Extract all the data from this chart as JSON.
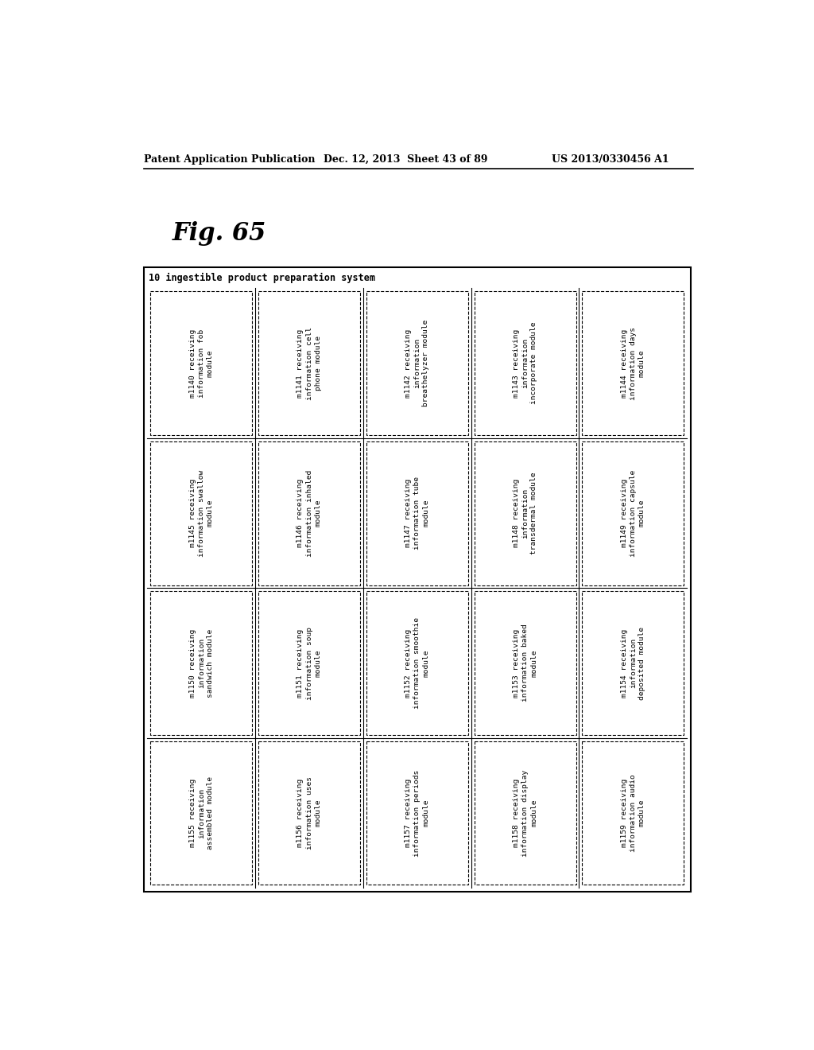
{
  "header_left": "Patent Application Publication",
  "header_mid": "Dec. 12, 2013  Sheet 43 of 89",
  "header_right": "US 2013/0330456 A1",
  "fig_label": "Fig. 65",
  "outer_label": "10 ingestible product preparation system",
  "cells": [
    [
      "m1140 receiving\ninformation fob\nmodule",
      "m1141 receiving\ninformation cell\nphone module",
      "m1142 receiving\ninformation\nbreathelyzer module",
      "m1143 receiving\ninformation\nincorporate module",
      "m1144 receiving\ninformation days\nmodule"
    ],
    [
      "m1145 receiving\ninformation swallow\nmodule",
      "m1146 receiving\ninformation inhaled\nmodule",
      "m1147 receiving\ninformation tube\nmodule",
      "m1148 receiving\ninformation\ntransdermal module",
      "m1149 receiving\ninformation capsule\nmodule"
    ],
    [
      "m1150 receiving\ninformation\nsandwich module",
      "m1151 receiving\ninformation soup\nmodule",
      "m1152 receiving\ninformation smoothie\nmodule",
      "m1153 receiving\ninformation baked\nmodule",
      "m1154 receiving\ninformation\ndeposited module"
    ],
    [
      "m1155 receiving\ninformation\nassembled module",
      "m1156 receiving\ninformation uses\nmodule",
      "m1157 receiving\ninformation periods\nmodule",
      "m1158 receiving\ninformation display\nmodule",
      "m1159 receiving\ninformation audio\nmodule"
    ]
  ]
}
